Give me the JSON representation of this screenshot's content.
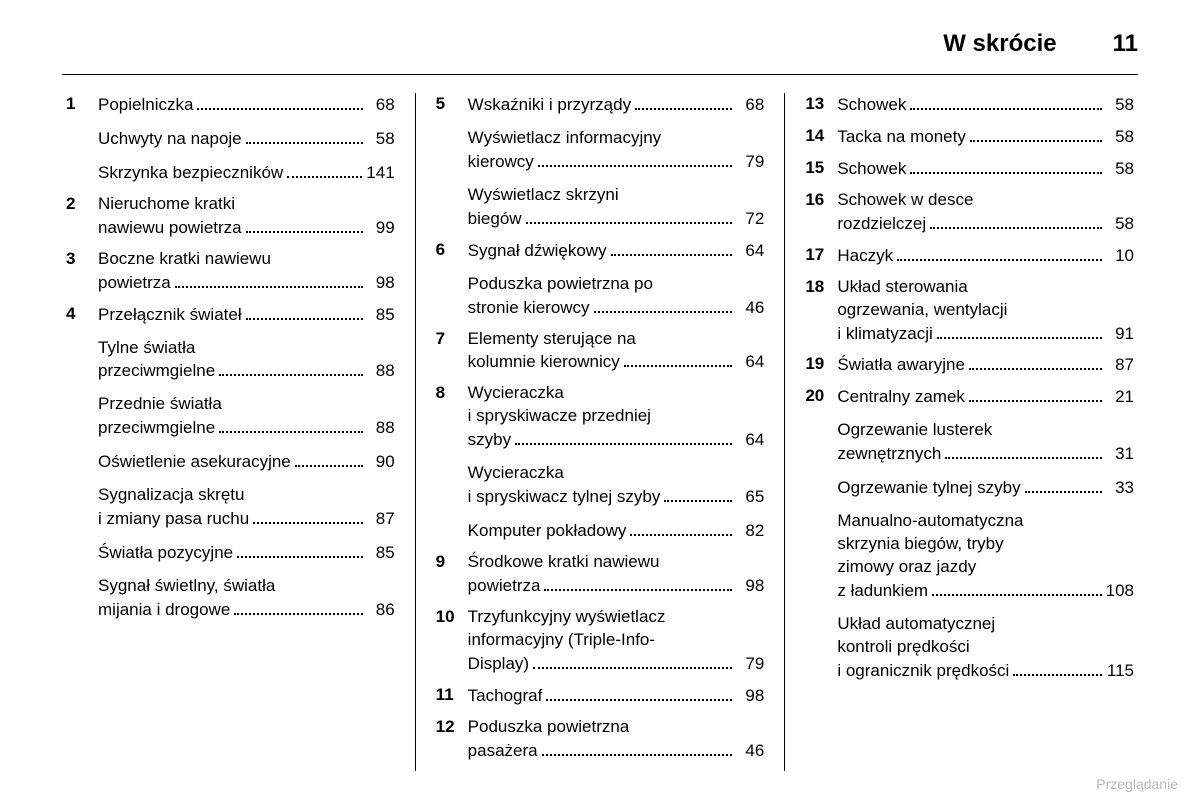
{
  "header": {
    "title": "W skrócie",
    "page_number": "11"
  },
  "footer": "Przeglądanie",
  "columns": [
    {
      "entries": [
        {
          "num": "1",
          "label": "Popielniczka",
          "page": "68"
        },
        {
          "num": "",
          "label": "Uchwyty na napoje",
          "page": "58",
          "sub": true
        },
        {
          "num": "",
          "label": "Skrzynka bezpieczników",
          "page": "141",
          "sub": true
        },
        {
          "num": "2",
          "wrap": [
            "Nieruchome kratki"
          ],
          "last": "nawiewu powietrza",
          "page": "99"
        },
        {
          "num": "3",
          "wrap": [
            "Boczne kratki nawiewu"
          ],
          "last": "powietrza",
          "page": "98"
        },
        {
          "num": "4",
          "label": "Przełącznik świateł",
          "page": "85"
        },
        {
          "num": "",
          "wrap": [
            "Tylne światła"
          ],
          "last": "przeciwmgielne",
          "page": "88",
          "sub": true
        },
        {
          "num": "",
          "wrap": [
            "Przednie światła"
          ],
          "last": "przeciwmgielne",
          "page": "88",
          "sub": true
        },
        {
          "num": "",
          "label": "Oświetlenie asekuracyjne",
          "page": "90",
          "sub": true
        },
        {
          "num": "",
          "wrap": [
            "Sygnalizacja skrętu"
          ],
          "last": "i zmiany pasa ruchu",
          "page": "87",
          "sub": true
        },
        {
          "num": "",
          "label": "Światła pozycyjne",
          "page": "85",
          "sub": true
        },
        {
          "num": "",
          "wrap": [
            "Sygnał świetlny, światła"
          ],
          "last": "mijania i drogowe",
          "page": "86",
          "sub": true
        }
      ]
    },
    {
      "entries": [
        {
          "num": "5",
          "label": "Wskaźniki i przyrządy",
          "page": "68"
        },
        {
          "num": "",
          "wrap": [
            "Wyświetlacz informacyjny"
          ],
          "last": "kierowcy",
          "page": "79",
          "sub": true
        },
        {
          "num": "",
          "wrap": [
            "Wyświetlacz skrzyni"
          ],
          "last": "biegów",
          "page": "72",
          "sub": true
        },
        {
          "num": "6",
          "label": "Sygnał dźwiękowy",
          "page": "64"
        },
        {
          "num": "",
          "wrap": [
            "Poduszka powietrzna po"
          ],
          "last": "stronie kierowcy",
          "page": "46",
          "sub": true
        },
        {
          "num": "7",
          "wrap": [
            "Elementy sterujące na"
          ],
          "last": "kolumnie kierownicy",
          "page": "64"
        },
        {
          "num": "8",
          "wrap": [
            "Wycieraczka",
            "i spryskiwacze przedniej"
          ],
          "last": "szyby",
          "page": "64"
        },
        {
          "num": "",
          "wrap": [
            "Wycieraczka"
          ],
          "last": "i spryskiwacz tylnej szyby",
          "page": "65",
          "sub": true
        },
        {
          "num": "",
          "label": "Komputer pokładowy",
          "page": "82",
          "sub": true
        },
        {
          "num": "9",
          "wrap": [
            "Środkowe kratki nawiewu"
          ],
          "last": "powietrza",
          "page": "98"
        },
        {
          "num": "10",
          "wrap": [
            "Trzyfunkcyjny wyświetlacz",
            "informacyjny (Triple-Info-"
          ],
          "last": "Display)",
          "page": "79"
        },
        {
          "num": "11",
          "label": "Tachograf",
          "page": "98"
        },
        {
          "num": "12",
          "wrap": [
            "Poduszka powietrzna"
          ],
          "last": "pasażera",
          "page": "46"
        }
      ]
    },
    {
      "entries": [
        {
          "num": "13",
          "label": "Schowek",
          "page": "58"
        },
        {
          "num": "14",
          "label": "Tacka na monety",
          "page": "58"
        },
        {
          "num": "15",
          "label": "Schowek",
          "page": "58"
        },
        {
          "num": "16",
          "wrap": [
            "Schowek w desce"
          ],
          "last": "rozdzielczej",
          "page": "58"
        },
        {
          "num": "17",
          "label": "Haczyk",
          "page": "10"
        },
        {
          "num": "18",
          "wrap": [
            "Układ sterowania",
            "ogrzewania, wentylacji"
          ],
          "last": "i klimatyzacji",
          "page": "91"
        },
        {
          "num": "19",
          "label": "Światła awaryjne",
          "page": "87"
        },
        {
          "num": "20",
          "label": "Centralny zamek",
          "page": "21"
        },
        {
          "num": "",
          "wrap": [
            "Ogrzewanie lusterek"
          ],
          "last": "zewnętrznych",
          "page": "31",
          "sub": true
        },
        {
          "num": "",
          "label": "Ogrzewanie tylnej szyby",
          "page": "33",
          "sub": true
        },
        {
          "num": "",
          "wrap": [
            "Manualno-automatyczna",
            "skrzynia biegów, tryby",
            "zimowy oraz jazdy"
          ],
          "last": "z ładunkiem",
          "page": "108",
          "sub": true
        },
        {
          "num": "",
          "wrap": [
            "Układ automatycznej",
            "kontroli prędkości"
          ],
          "last": "i ogranicznik prędkości",
          "page": "115",
          "sub": true
        }
      ]
    }
  ]
}
